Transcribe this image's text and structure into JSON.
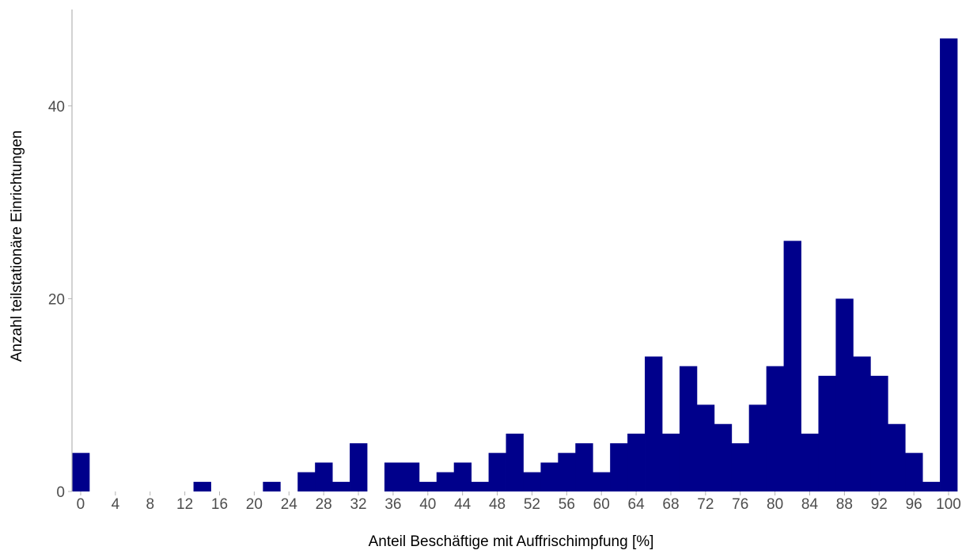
{
  "chart_data": {
    "type": "bar",
    "title": "",
    "xlabel": "Anteil Beschäftige mit Auffrischimpfung [%]",
    "ylabel": "Anzahl teilstationäre Einrichtungen",
    "bar_color": "#00008B",
    "axis_color": "#b3b3b3",
    "tick_label_color": "#4d4d4d",
    "grid": false,
    "xlim": [
      -1,
      101
    ],
    "ylim": [
      0,
      50
    ],
    "bin_width": 2,
    "x": [
      0,
      2,
      4,
      6,
      8,
      10,
      12,
      14,
      16,
      18,
      20,
      22,
      24,
      26,
      28,
      30,
      32,
      34,
      36,
      38,
      40,
      42,
      44,
      46,
      48,
      50,
      52,
      54,
      56,
      58,
      60,
      62,
      64,
      66,
      68,
      70,
      72,
      74,
      76,
      78,
      80,
      82,
      84,
      86,
      88,
      90,
      92,
      94,
      96,
      98,
      100
    ],
    "values": [
      4,
      0,
      0,
      0,
      0,
      0,
      0,
      1,
      0,
      0,
      0,
      1,
      0,
      2,
      3,
      1,
      5,
      0,
      3,
      3,
      1,
      2,
      3,
      1,
      4,
      6,
      2,
      3,
      4,
      5,
      2,
      5,
      6,
      14,
      6,
      13,
      9,
      7,
      5,
      9,
      13,
      26,
      6,
      12,
      20,
      14,
      12,
      7,
      4,
      1,
      47
    ],
    "x_ticks": [
      0,
      4,
      8,
      12,
      16,
      20,
      24,
      28,
      32,
      36,
      40,
      44,
      48,
      52,
      56,
      60,
      64,
      68,
      72,
      76,
      80,
      84,
      88,
      92,
      96,
      100
    ],
    "x_tick_labels": [
      "0",
      "4",
      "8",
      "12",
      "16",
      "20",
      "24",
      "28",
      "32",
      "36",
      "40",
      "44",
      "48",
      "52",
      "56",
      "60",
      "64",
      "68",
      "72",
      "76",
      "80",
      "84",
      "88",
      "92",
      "96",
      "100"
    ],
    "y_ticks": [
      0,
      20,
      40
    ],
    "y_tick_labels": [
      "0",
      "20",
      "40"
    ]
  }
}
